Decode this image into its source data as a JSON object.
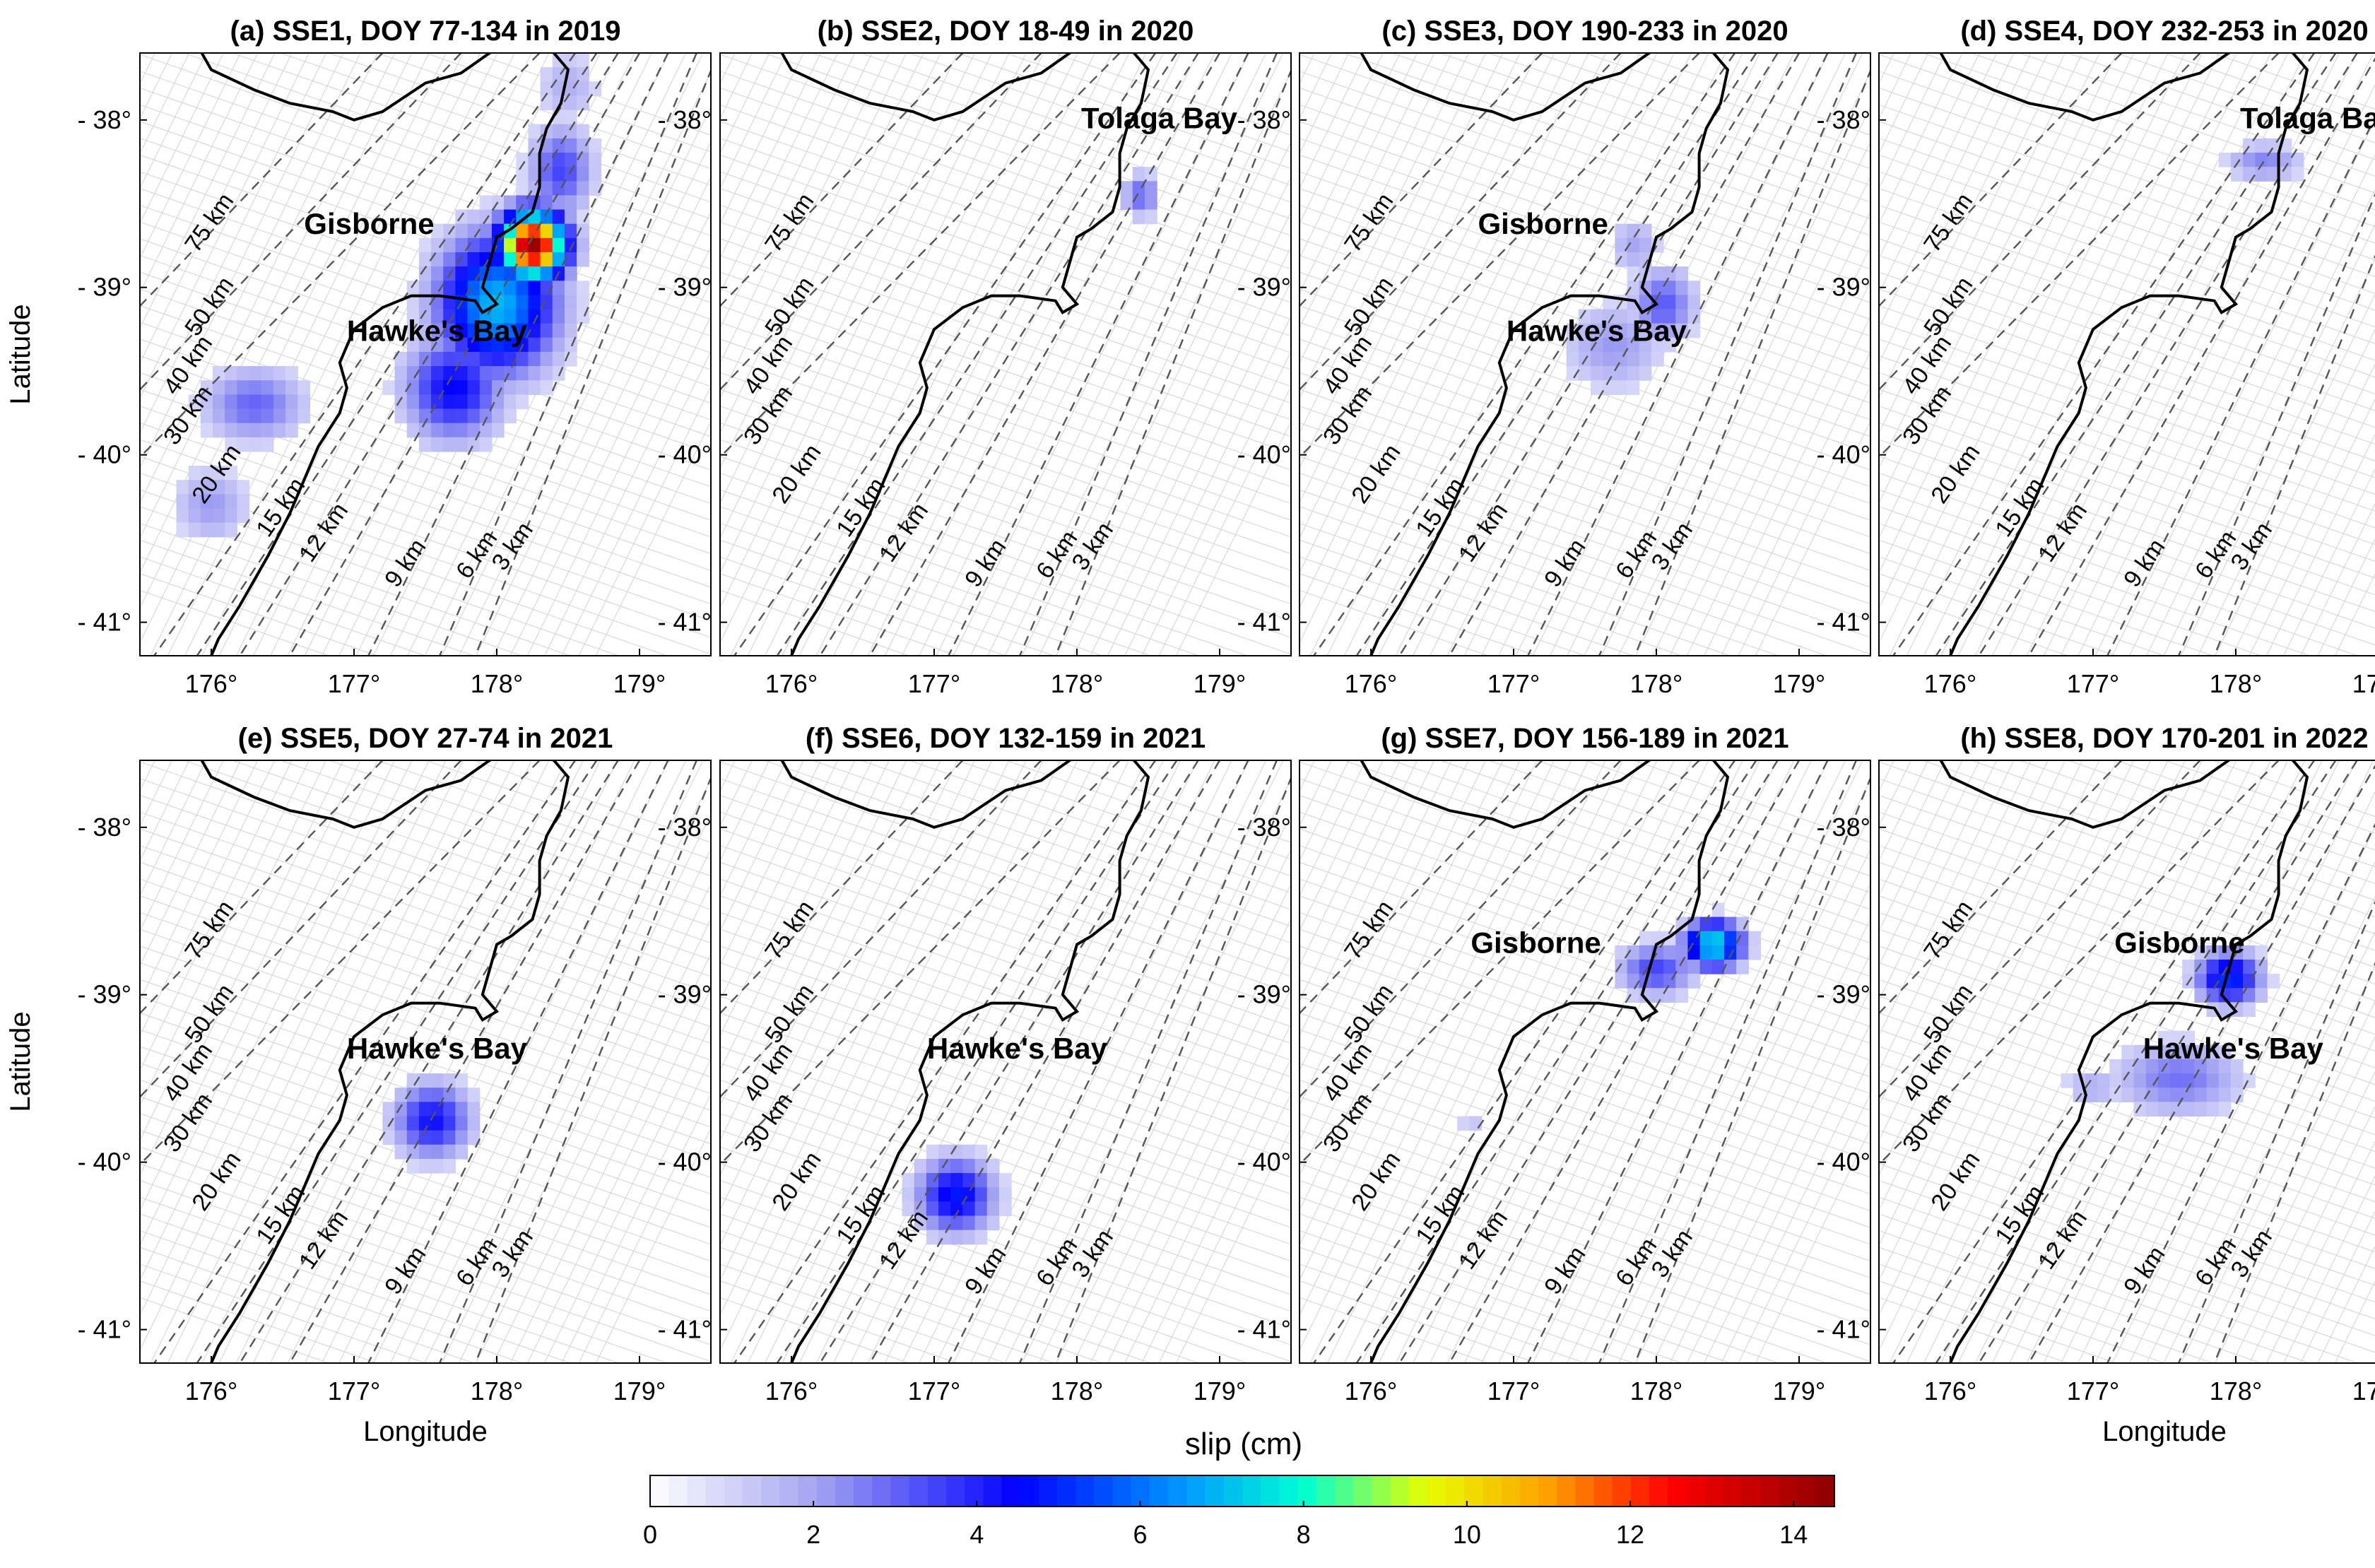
{
  "chart_data": {
    "type": "heatmap",
    "colorbar": {
      "label": "slip (cm)",
      "range": [
        0,
        14.5
      ],
      "ticks": [
        0,
        2,
        4,
        6,
        8,
        10,
        12,
        14
      ],
      "tick_labels": [
        "0",
        "2",
        "4",
        "6",
        "8",
        "10",
        "12",
        "14"
      ],
      "stops": [
        {
          "v": 0,
          "c": "#ffffff"
        },
        {
          "v": 2,
          "c": "#a6a6f2"
        },
        {
          "v": 4.5,
          "c": "#0000ff"
        },
        {
          "v": 6.5,
          "c": "#0096ff"
        },
        {
          "v": 8,
          "c": "#00ffd2"
        },
        {
          "v": 9.5,
          "c": "#e6ff00"
        },
        {
          "v": 11,
          "c": "#ffa000"
        },
        {
          "v": 12.5,
          "c": "#ff0000"
        },
        {
          "v": 14.5,
          "c": "#8c0000"
        }
      ]
    },
    "axes": {
      "xlim": [
        175.5,
        179.5
      ],
      "ylim": [
        -41.2,
        -37.6
      ],
      "xticks": [
        176,
        177,
        178,
        179
      ],
      "yticks": [
        -38,
        -39,
        -40,
        -41
      ],
      "xtick_labels": [
        "176°",
        "177°",
        "178°",
        "179°"
      ],
      "ytick_labels": [
        "- 38°",
        "- 39°",
        "- 40°",
        "- 41°"
      ],
      "xlabel": "Longitude",
      "ylabel": "Latitude"
    },
    "depth_contours": [
      {
        "label": "75 km",
        "label_lon": 175.9,
        "label_lat": -38.8
      },
      {
        "label": "50 km",
        "label_lon": 175.9,
        "label_lat": -39.3
      },
      {
        "label": "40 km",
        "label_lon": 175.75,
        "label_lat": -39.65
      },
      {
        "label": "30 km",
        "label_lon": 175.75,
        "label_lat": -39.95
      },
      {
        "label": "20 km",
        "label_lon": 175.95,
        "label_lat": -40.3
      },
      {
        "label": "15 km",
        "label_lon": 176.4,
        "label_lat": -40.5
      },
      {
        "label": "12 km",
        "label_lon": 176.7,
        "label_lat": -40.65
      },
      {
        "label": "9 km",
        "label_lon": 177.3,
        "label_lat": -40.8
      },
      {
        "label": "6 km",
        "label_lon": 177.8,
        "label_lat": -40.75
      },
      {
        "label": "3 km",
        "label_lon": 178.05,
        "label_lat": -40.7
      }
    ],
    "panels": [
      {
        "title": "(a) SSE1, DOY 77-134 in 2019",
        "places": [
          {
            "name": "Gisborne",
            "lon": 176.65,
            "lat": -38.68
          },
          {
            "name": "Hawke's Bay",
            "lon": 176.95,
            "lat": -39.32
          }
        ],
        "slip": [
          {
            "lon": 178.25,
            "lat": -38.75,
            "peak": 14.3,
            "sx": 0.25,
            "sy": 0.22
          },
          {
            "lon": 178.0,
            "lat": -39.1,
            "peak": 7.0,
            "sx": 0.45,
            "sy": 0.45
          },
          {
            "lon": 177.7,
            "lat": -39.6,
            "peak": 4.5,
            "sx": 0.38,
            "sy": 0.35
          },
          {
            "lon": 178.45,
            "lat": -38.3,
            "peak": 3.5,
            "sx": 0.25,
            "sy": 0.3
          },
          {
            "lon": 176.3,
            "lat": -39.7,
            "peak": 3.0,
            "sx": 0.4,
            "sy": 0.25
          },
          {
            "lon": 176.0,
            "lat": -40.3,
            "peak": 2.2,
            "sx": 0.3,
            "sy": 0.25
          },
          {
            "lon": 178.5,
            "lat": -37.8,
            "peak": 1.8,
            "sx": 0.25,
            "sy": 0.25
          }
        ]
      },
      {
        "title": "(b) SSE2, DOY 18-49 in 2020",
        "places": [
          {
            "name": "Tolaga Bay",
            "lon": 178.03,
            "lat": -38.05
          }
        ],
        "slip": [
          {
            "lon": 178.45,
            "lat": -38.45,
            "peak": 3.0,
            "sx": 0.15,
            "sy": 0.15
          }
        ]
      },
      {
        "title": "(c) SSE3, DOY 190-233 in 2020",
        "places": [
          {
            "name": "Gisborne",
            "lon": 176.75,
            "lat": -38.68
          },
          {
            "name": "Hawke's Bay",
            "lon": 176.95,
            "lat": -39.32
          }
        ],
        "slip": [
          {
            "lon": 178.05,
            "lat": -39.1,
            "peak": 3.2,
            "sx": 0.25,
            "sy": 0.25
          },
          {
            "lon": 177.7,
            "lat": -39.35,
            "peak": 2.2,
            "sx": 0.4,
            "sy": 0.3
          },
          {
            "lon": 177.85,
            "lat": -38.75,
            "peak": 2.0,
            "sx": 0.2,
            "sy": 0.2
          }
        ]
      },
      {
        "title": "(d) SSE4, DOY 232-253 in 2020",
        "places": [
          {
            "name": "Tolaga Bay",
            "lon": 178.03,
            "lat": -38.05
          }
        ],
        "slip": [
          {
            "lon": 178.2,
            "lat": -38.25,
            "peak": 2.5,
            "sx": 0.3,
            "sy": 0.13
          }
        ]
      },
      {
        "title": "(e) SSE5, DOY 27-74 in 2021",
        "places": [
          {
            "name": "Hawke's Bay",
            "lon": 176.95,
            "lat": -39.38
          }
        ],
        "slip": [
          {
            "lon": 177.55,
            "lat": -39.75,
            "peak": 4.3,
            "sx": 0.3,
            "sy": 0.25
          }
        ]
      },
      {
        "title": "(f) SSE6, DOY 132-159 in 2021",
        "places": [
          {
            "name": "Hawke's Bay",
            "lon": 176.95,
            "lat": -39.38
          }
        ],
        "slip": [
          {
            "lon": 177.15,
            "lat": -40.2,
            "peak": 4.8,
            "sx": 0.3,
            "sy": 0.25
          }
        ]
      },
      {
        "title": "(g) SSE7, DOY 156-189 in 2021",
        "places": [
          {
            "name": "Gisborne",
            "lon": 176.7,
            "lat": -38.75
          }
        ],
        "slip": [
          {
            "lon": 178.4,
            "lat": -38.7,
            "peak": 7.8,
            "sx": 0.22,
            "sy": 0.15
          },
          {
            "lon": 178.0,
            "lat": -38.85,
            "peak": 3.5,
            "sx": 0.3,
            "sy": 0.18
          },
          {
            "lon": 176.7,
            "lat": -39.75,
            "peak": 1.5,
            "sx": 0.1,
            "sy": 0.06
          }
        ]
      },
      {
        "title": "(h) SSE8, DOY 170-201 in 2022",
        "places": [
          {
            "name": "Gisborne",
            "lon": 177.15,
            "lat": -38.75
          },
          {
            "name": "Hawke's Bay",
            "lon": 177.35,
            "lat": -39.38
          }
        ],
        "slip": [
          {
            "lon": 177.95,
            "lat": -38.9,
            "peak": 5.2,
            "sx": 0.25,
            "sy": 0.18
          },
          {
            "lon": 177.6,
            "lat": -39.5,
            "peak": 2.8,
            "sx": 0.5,
            "sy": 0.25
          },
          {
            "lon": 177.0,
            "lat": -39.55,
            "peak": 1.8,
            "sx": 0.25,
            "sy": 0.15
          }
        ]
      }
    ]
  }
}
